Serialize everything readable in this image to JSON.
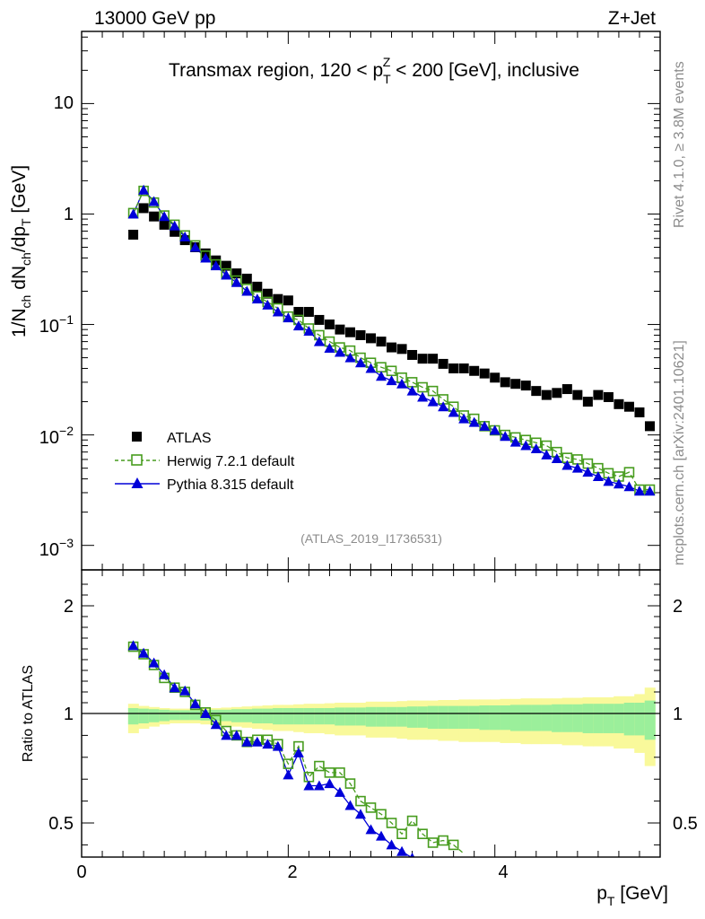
{
  "header": {
    "left_label": "13000 GeV pp",
    "right_label": "Z+Jet"
  },
  "chart_data": [
    {
      "type": "scatter",
      "panel": "main",
      "title_parts": {
        "pre": "Transmax region, 120 < p",
        "sub": "T",
        "sup": "Z",
        "post": " < 200 [GeV], inclusive"
      },
      "ylabel_parts": [
        "1/N",
        "ch",
        " dN",
        "ch",
        "/dp",
        "T",
        " [GeV]"
      ],
      "yscale": "log",
      "xlim": [
        0,
        5.6
      ],
      "ylim": [
        0.0006,
        45
      ],
      "ytick_labels": [
        {
          "v": 10,
          "base": "10",
          "exp": ""
        },
        {
          "v": 1,
          "base": "1",
          "exp": ""
        },
        {
          "v": 0.1,
          "base": "10",
          "exp": "−1"
        },
        {
          "v": 0.01,
          "base": "10",
          "exp": "−2"
        },
        {
          "v": 0.001,
          "base": "10",
          "exp": "−3"
        }
      ],
      "watermark": "(ATLAS_2019_I1736531)",
      "side_labels": {
        "rivet": "Rivet 4.1.0, ≥ 3.8M events",
        "mcplots": "mcplots.cern.ch [arXiv:2401.10621]"
      },
      "legend": [
        {
          "label": "ATLAS",
          "series": "atlas"
        },
        {
          "label": "Herwig 7.2.1 default",
          "series": "herwig"
        },
        {
          "label": "Pythia 8.315 default",
          "series": "pythia"
        }
      ],
      "x": [
        0.5,
        0.6,
        0.7,
        0.8,
        0.9,
        1.0,
        1.1,
        1.2,
        1.3,
        1.4,
        1.5,
        1.6,
        1.7,
        1.8,
        1.9,
        2.0,
        2.1,
        2.2,
        2.3,
        2.4,
        2.5,
        2.6,
        2.7,
        2.8,
        2.9,
        3.0,
        3.1,
        3.2,
        3.3,
        3.4,
        3.5,
        3.6,
        3.7,
        3.8,
        3.9,
        4.0,
        4.1,
        4.2,
        4.3,
        4.4,
        4.5,
        4.6,
        4.7,
        4.8,
        4.9,
        5.0,
        5.1,
        5.2,
        5.3,
        5.4,
        5.5
      ],
      "series": [
        {
          "name": "ATLAS",
          "color": "#000000",
          "marker": "filled-square",
          "values": [
            0.65,
            1.13,
            0.95,
            0.8,
            0.69,
            0.58,
            0.5,
            0.44,
            0.38,
            0.34,
            0.29,
            0.26,
            0.22,
            0.19,
            0.17,
            0.165,
            0.13,
            0.13,
            0.11,
            0.1,
            0.09,
            0.085,
            0.08,
            0.075,
            0.07,
            0.062,
            0.06,
            0.053,
            0.049,
            0.049,
            0.044,
            0.04,
            0.04,
            0.038,
            0.036,
            0.033,
            0.03,
            0.029,
            0.028,
            0.025,
            0.023,
            0.024,
            0.026,
            0.023,
            0.02,
            0.023,
            0.022,
            0.019,
            0.018,
            0.016,
            0.012
          ]
        },
        {
          "name": "Herwig 7.2.1 default",
          "color": "#479c1e",
          "marker": "open-square",
          "values": [
            1.02,
            1.62,
            1.27,
            0.97,
            0.8,
            0.64,
            0.52,
            0.42,
            0.35,
            0.29,
            0.25,
            0.21,
            0.18,
            0.16,
            0.14,
            0.118,
            0.11,
            0.092,
            0.08,
            0.07,
            0.062,
            0.058,
            0.05,
            0.045,
            0.041,
            0.038,
            0.033,
            0.03,
            0.027,
            0.025,
            0.021,
            0.018,
            0.015,
            0.014,
            0.012,
            0.011,
            0.01,
            0.0095,
            0.009,
            0.0085,
            0.008,
            0.007,
            0.0062,
            0.006,
            0.0055,
            0.005,
            0.0045,
            0.0042,
            0.0046,
            0.0032,
            0.0032
          ]
        },
        {
          "name": "Pythia 8.315 default",
          "color": "#0000d9",
          "marker": "filled-triangle",
          "values": [
            1.0,
            1.65,
            1.3,
            0.95,
            0.78,
            0.62,
            0.5,
            0.4,
            0.34,
            0.28,
            0.24,
            0.2,
            0.17,
            0.15,
            0.13,
            0.115,
            0.097,
            0.087,
            0.07,
            0.061,
            0.056,
            0.05,
            0.045,
            0.04,
            0.034,
            0.031,
            0.029,
            0.025,
            0.022,
            0.02,
            0.018,
            0.016,
            0.014,
            0.013,
            0.012,
            0.011,
            0.0097,
            0.0086,
            0.008,
            0.0075,
            0.0066,
            0.0061,
            0.0053,
            0.005,
            0.0046,
            0.0042,
            0.0038,
            0.0036,
            0.0034,
            0.0031,
            0.0031
          ]
        }
      ]
    },
    {
      "type": "scatter",
      "panel": "ratio",
      "ylabel": "Ratio to ATLAS",
      "xlabel_parts": [
        "p",
        "T",
        " [GeV]"
      ],
      "xlim": [
        0,
        5.6
      ],
      "ylim": [
        0.34,
        2.28
      ],
      "xtick_labels": [
        "0",
        "2",
        "4"
      ],
      "ytick_labels": [
        "0.5",
        "1",
        "2"
      ],
      "bands": {
        "x": [
          0.5,
          0.6,
          0.7,
          0.8,
          0.9,
          1.0,
          1.1,
          1.2,
          1.3,
          1.4,
          1.5,
          1.6,
          1.7,
          1.8,
          1.9,
          2.0,
          2.1,
          2.2,
          2.3,
          2.4,
          2.5,
          2.6,
          2.7,
          2.8,
          2.9,
          3.0,
          3.1,
          3.2,
          3.3,
          3.4,
          3.5,
          3.6,
          3.7,
          3.8,
          3.9,
          4.0,
          4.1,
          4.2,
          4.3,
          4.4,
          4.5,
          4.6,
          4.7,
          4.8,
          4.9,
          5.0,
          5.1,
          5.2,
          5.3,
          5.4,
          5.5
        ],
        "stat_half_width": [
          0.05,
          0.045,
          0.04,
          0.035,
          0.03,
          0.03,
          0.03,
          0.032,
          0.035,
          0.035,
          0.04,
          0.04,
          0.045,
          0.045,
          0.05,
          0.05,
          0.05,
          0.05,
          0.05,
          0.05,
          0.055,
          0.055,
          0.055,
          0.06,
          0.06,
          0.06,
          0.06,
          0.065,
          0.065,
          0.07,
          0.07,
          0.07,
          0.07,
          0.07,
          0.075,
          0.075,
          0.075,
          0.08,
          0.08,
          0.08,
          0.08,
          0.085,
          0.085,
          0.085,
          0.09,
          0.09,
          0.09,
          0.09,
          0.1,
          0.1,
          0.12
        ],
        "total_half_width": [
          0.09,
          0.07,
          0.06,
          0.05,
          0.045,
          0.045,
          0.045,
          0.05,
          0.05,
          0.055,
          0.06,
          0.065,
          0.07,
          0.075,
          0.08,
          0.08,
          0.085,
          0.09,
          0.09,
          0.095,
          0.1,
          0.1,
          0.1,
          0.11,
          0.11,
          0.11,
          0.115,
          0.12,
          0.12,
          0.12,
          0.125,
          0.125,
          0.13,
          0.13,
          0.13,
          0.13,
          0.135,
          0.135,
          0.14,
          0.14,
          0.14,
          0.14,
          0.145,
          0.145,
          0.15,
          0.15,
          0.15,
          0.16,
          0.16,
          0.18,
          0.24
        ],
        "stat_color": "#9bef9b",
        "total_color": "#f9f99b"
      },
      "series": [
        {
          "name": "Herwig 7.2.1 default",
          "color": "#479c1e",
          "marker": "open-square",
          "x": [
            0.5,
            0.6,
            0.7,
            0.8,
            0.9,
            1.0,
            1.1,
            1.2,
            1.3,
            1.4,
            1.5,
            1.6,
            1.7,
            1.8,
            1.9,
            2.0,
            2.1,
            2.2,
            2.3,
            2.4,
            2.5,
            2.6,
            2.7,
            2.8,
            2.9,
            3.0,
            3.1,
            3.2,
            3.3,
            3.4,
            3.5,
            3.6
          ],
          "values": [
            1.62,
            1.55,
            1.45,
            1.33,
            1.24,
            1.2,
            1.08,
            1.01,
            0.97,
            0.92,
            0.9,
            0.87,
            0.88,
            0.88,
            0.86,
            0.77,
            0.85,
            0.71,
            0.76,
            0.73,
            0.73,
            0.68,
            0.6,
            0.57,
            0.54,
            0.5,
            0.45,
            0.51,
            0.45,
            0.41,
            0.42,
            0.4
          ]
        },
        {
          "name": "Pythia 8.315 default",
          "color": "#0000d9",
          "marker": "filled-triangle",
          "x": [
            0.5,
            0.6,
            0.7,
            0.8,
            0.9,
            1.0,
            1.1,
            1.2,
            1.3,
            1.4,
            1.5,
            1.6,
            1.7,
            1.8,
            1.9,
            2.0,
            2.1,
            2.2,
            2.3,
            2.4,
            2.5,
            2.6,
            2.7,
            2.8,
            2.9,
            3.0,
            3.1,
            3.2
          ],
          "values": [
            1.63,
            1.56,
            1.47,
            1.36,
            1.24,
            1.21,
            1.09,
            1.0,
            0.95,
            0.9,
            0.9,
            0.87,
            0.87,
            0.86,
            0.85,
            0.72,
            0.82,
            0.67,
            0.67,
            0.68,
            0.64,
            0.58,
            0.54,
            0.47,
            0.44,
            0.4,
            0.37,
            0.34
          ]
        }
      ]
    }
  ]
}
